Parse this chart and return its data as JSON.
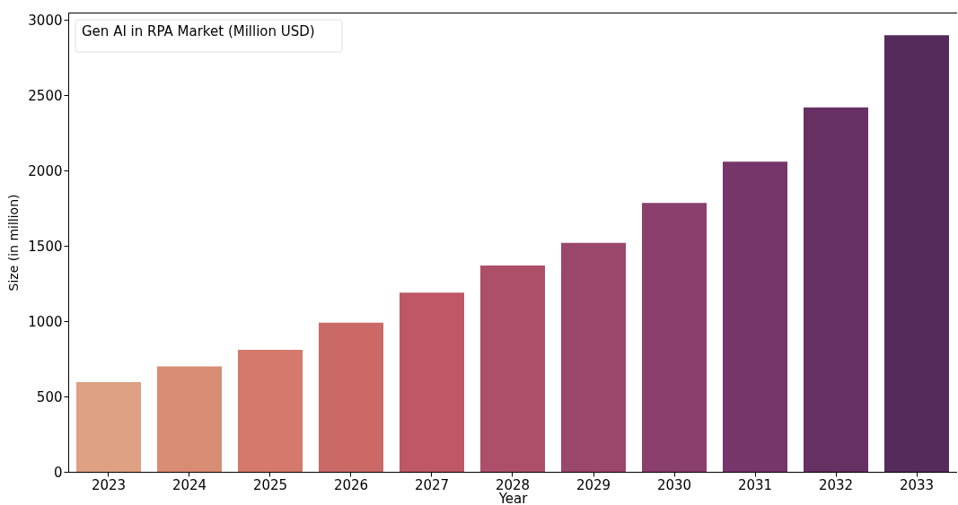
{
  "chart_data": {
    "type": "bar",
    "xlabel": "Year",
    "ylabel": "Size (in million)",
    "legend_title": "Gen AI in RPA Market (Million USD)",
    "categories": [
      "2023",
      "2024",
      "2025",
      "2026",
      "2027",
      "2028",
      "2029",
      "2030",
      "2031",
      "2032",
      "2033"
    ],
    "values": [
      595,
      700,
      810,
      990,
      1190,
      1370,
      1520,
      1785,
      2060,
      2420,
      2900
    ],
    "colors": [
      "#dda083",
      "#d88c74",
      "#d4796b",
      "#cb6966",
      "#bf5766",
      "#ae4f6a",
      "#9b476c",
      "#8a3f6d",
      "#76366a",
      "#663062",
      "#542b5a"
    ],
    "ylim": [
      0,
      3050
    ],
    "yticks": [
      0,
      500,
      1000,
      1500,
      2000,
      2500,
      3000
    ],
    "grid": false
  }
}
